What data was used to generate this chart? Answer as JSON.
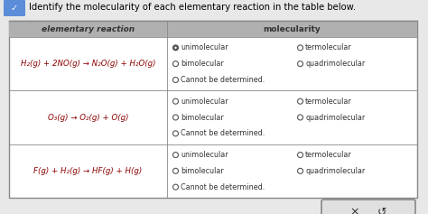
{
  "title": "Identify the molecularity of each elementary reaction in the table below.",
  "bg_color": "#e8e8e8",
  "table_bg": "white",
  "header_bg": "#b0b0b0",
  "col1_header": "elementary reaction",
  "col2_header": "molecularity",
  "reactions": [
    "H₂(g) + 2NO(g) → N₂O(g) + H₂O(g)",
    "O₃(g) → O₂(g) + O(g)",
    "F(g) + H₂(g) → HF(g) + H(g)"
  ],
  "options": [
    [
      "unimolecular",
      "termolecular",
      "bimolecular",
      "quadrimolecular",
      "Cannot be determined."
    ],
    [
      "unimolecular",
      "termolecular",
      "bimolecular",
      "quadrimolecular",
      "Cannot be determined."
    ],
    [
      "unimolecular",
      "termolecular",
      "bimolecular",
      "quadrimolecular",
      "Cannot be determined."
    ]
  ],
  "selected": [
    0,
    -1,
    -1
  ],
  "rxn_color": "#8b0000",
  "header_text_color": "#333333",
  "option_text_color": "#333333",
  "radio_color": "#555555",
  "selected_fill": "#555555",
  "btn_bg": "#e0e0e0",
  "btn_border": "#888888",
  "table_border": "#888888",
  "badge_color": "#5b8dd9",
  "title_fontsize": 7.2,
  "header_fontsize": 6.5,
  "rxn_fontsize": 6.2,
  "opt_fontsize": 5.8
}
